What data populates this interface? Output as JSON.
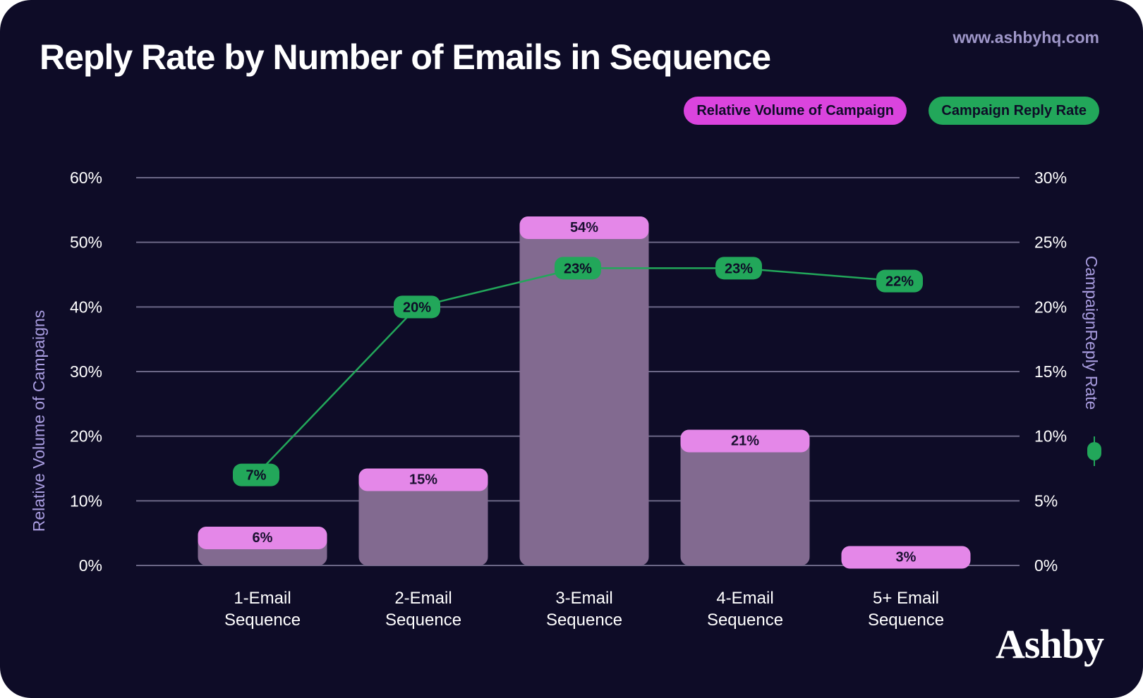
{
  "header": {
    "title": "Reply Rate by Number of Emails in Sequence",
    "site": "www.ashbyhq.com",
    "brand": "Ashby"
  },
  "colors": {
    "background": "#0e0c27",
    "bar": "#826a90",
    "bar_cap": "#e487e8",
    "line": "#22a75a",
    "legend_volume": "#da44de",
    "legend_reply": "#22a75a",
    "grid": "#6b6786",
    "axis_title": "#a99de0"
  },
  "chart_data": {
    "type": "bar",
    "title": "Reply Rate by Number of Emails in Sequence",
    "categories": [
      [
        "1-Email",
        "Sequence"
      ],
      [
        "2-Email",
        "Sequence"
      ],
      [
        "3-Email",
        "Sequence"
      ],
      [
        "4-Email",
        "Sequence"
      ],
      [
        "5+ Email",
        "Sequence"
      ]
    ],
    "series": [
      {
        "name": "Relative Volume of Campaign",
        "type": "bar",
        "axis": "left",
        "values": [
          6,
          15,
          54,
          21,
          3
        ],
        "labels": [
          "6%",
          "15%",
          "54%",
          "21%",
          "3%"
        ]
      },
      {
        "name": "Campaign Reply Rate",
        "type": "line",
        "axis": "right",
        "values": [
          7,
          20,
          23,
          23,
          22
        ],
        "labels": [
          "7%",
          "20%",
          "23%",
          "23%",
          "22%"
        ]
      }
    ],
    "ylabel": "Relative Volume of Campaigns",
    "ylim": [
      0,
      60
    ],
    "yticks": [
      "0%",
      "10%",
      "20%",
      "30%",
      "40%",
      "50%",
      "60%"
    ],
    "y2label": "CampaignReply Rate",
    "y2lim": [
      0,
      30
    ],
    "y2ticks": [
      "0%",
      "5%",
      "10%",
      "15%",
      "20%",
      "25%",
      "30%"
    ],
    "grid": true,
    "legend_position": "top-right"
  }
}
